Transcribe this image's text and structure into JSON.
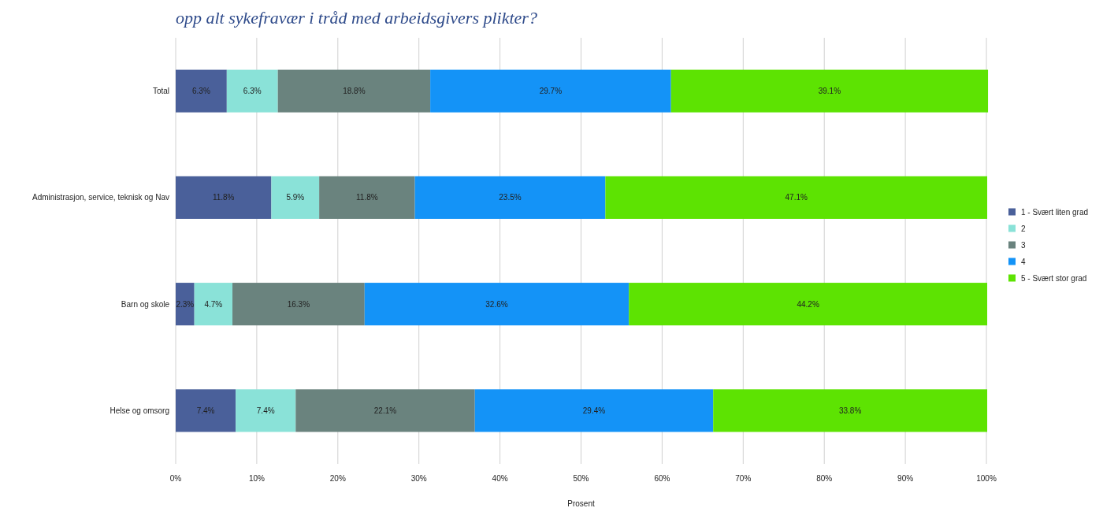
{
  "chart_data": {
    "type": "bar",
    "orientation": "horizontal",
    "stacked": true,
    "title": "opp alt sykefravær i tråd med arbeidsgivers plikter?",
    "xlabel": "Prosent",
    "categories": [
      "Total",
      "Administrasjon, service, teknisk og Nav",
      "Barn og skole",
      "Helse og omsorg"
    ],
    "series": [
      {
        "name": "1 - Svært liten grad",
        "color": "#4a609a",
        "values": [
          6.3,
          11.8,
          2.3,
          7.4
        ],
        "value_labels": [
          "6.3%",
          "11.8%",
          "2.3%",
          "7.4%"
        ]
      },
      {
        "name": "2",
        "color": "#8ae2d8",
        "values": [
          6.3,
          5.9,
          4.7,
          7.4
        ],
        "value_labels": [
          "6.3%",
          "5.9%",
          "4.7%",
          "7.4%"
        ]
      },
      {
        "name": "3",
        "color": "#6a837e",
        "values": [
          18.8,
          11.8,
          16.3,
          22.1
        ],
        "value_labels": [
          "18.8%",
          "11.8%",
          "16.3%",
          "22.1%"
        ]
      },
      {
        "name": "4",
        "color": "#1493f7",
        "values": [
          29.7,
          23.5,
          32.6,
          29.4
        ],
        "value_labels": [
          "29.7%",
          "23.5%",
          "32.6%",
          "29.4%"
        ]
      },
      {
        "name": "5 - Svært stor grad",
        "color": "#5de302",
        "values": [
          39.1,
          47.1,
          44.2,
          33.8
        ],
        "value_labels": [
          "39.1%",
          "47.1%",
          "44.2%",
          "33.8%"
        ]
      }
    ],
    "xlim": [
      0,
      100
    ],
    "xticks": [
      {
        "value": 0,
        "label": "0%"
      },
      {
        "value": 10,
        "label": "10%"
      },
      {
        "value": 20,
        "label": "20%"
      },
      {
        "value": 30,
        "label": "30%"
      },
      {
        "value": 40,
        "label": "40%"
      },
      {
        "value": 50,
        "label": "50%"
      },
      {
        "value": 60,
        "label": "60%"
      },
      {
        "value": 70,
        "label": "70%"
      },
      {
        "value": 80,
        "label": "80%"
      },
      {
        "value": 90,
        "label": "90%"
      },
      {
        "value": 100,
        "label": "100%"
      }
    ],
    "grid": "x",
    "legend": "right"
  }
}
